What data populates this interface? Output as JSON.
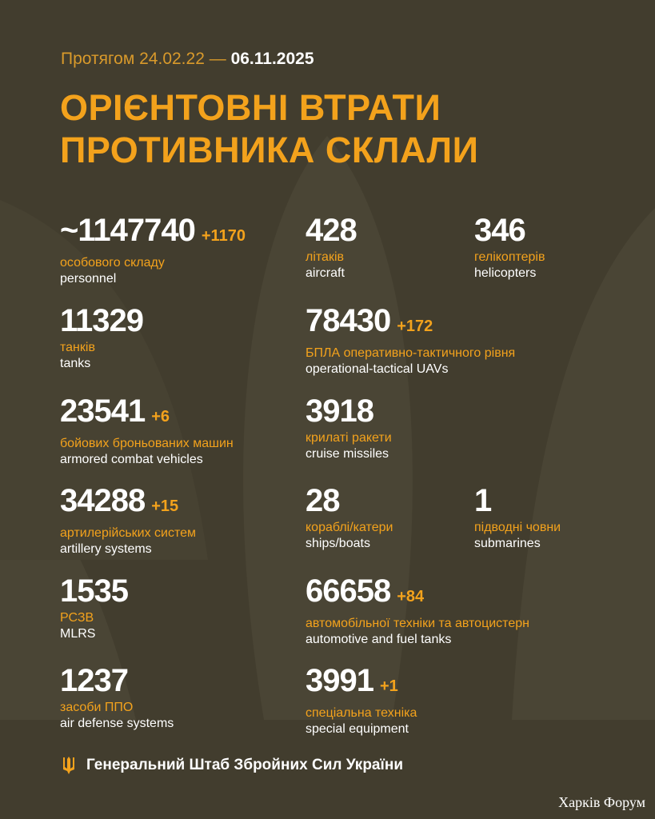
{
  "header": {
    "period_prefix": "Протягом 24.02.22 —",
    "period_end": "06.11.2025",
    "title_line1": "ОРІЄНТОВНІ ВТРАТИ",
    "title_line2": "ПРОТИВНИКА СКЛАЛИ"
  },
  "colors": {
    "background": "#423d2e",
    "accent": "#f3a21c",
    "text": "#ffffff"
  },
  "stats": [
    {
      "value": "~1147740",
      "delta": "+1170",
      "ua": "особового складу",
      "en": "personnel"
    },
    {
      "value": "428",
      "delta": "",
      "ua": "літаків",
      "en": "aircraft"
    },
    {
      "value": "346",
      "delta": "",
      "ua": "гелікоптерів",
      "en": "helicopters"
    },
    {
      "value": "11329",
      "delta": "",
      "ua": "танків",
      "en": "tanks"
    },
    {
      "value": "78430",
      "delta": "+172",
      "ua": "БПЛА оперативно-тактичного рівня",
      "en": "operational-tactical UAVs"
    },
    {
      "value": "23541",
      "delta": "+6",
      "ua": "бойових броньованих машин",
      "en": "armored combat vehicles"
    },
    {
      "value": "3918",
      "delta": "",
      "ua": "крилаті ракети",
      "en": "cruise missiles"
    },
    {
      "value": "34288",
      "delta": "+15",
      "ua": "артилерійських систем",
      "en": "artillery systems"
    },
    {
      "value": "28",
      "delta": "",
      "ua": "кораблі/катери",
      "en": "ships/boats"
    },
    {
      "value": "1",
      "delta": "",
      "ua": "підводні човни",
      "en": "submarines"
    },
    {
      "value": "1535",
      "delta": "",
      "ua": "РСЗВ",
      "en": "MLRS"
    },
    {
      "value": "66658",
      "delta": "+84",
      "ua": "автомобільної техніки та автоцистерн",
      "en": "automotive and fuel tanks"
    },
    {
      "value": "1237",
      "delta": "",
      "ua": "засоби ППО",
      "en": "air defense systems"
    },
    {
      "value": "3991",
      "delta": "+1",
      "ua": "спеціальна техніка",
      "en": "special equipment"
    }
  ],
  "footer": {
    "icon": "trident-icon",
    "text": "Генеральний Штаб Збройних Сил України"
  },
  "watermark": "Харків Форум"
}
